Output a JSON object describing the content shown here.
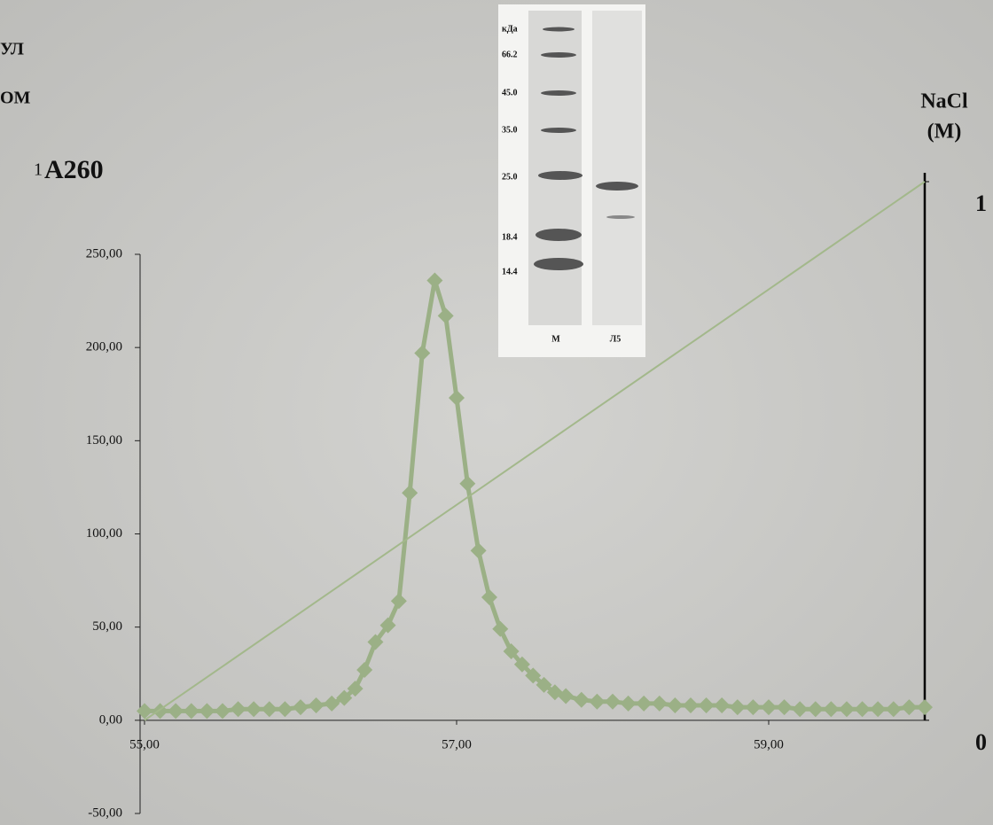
{
  "chart_data": {
    "type": "line",
    "ylabel": "A260",
    "y2label": [
      "NaCl",
      "(M)"
    ],
    "annotations": [
      "УЛ",
      "ОМ",
      "1"
    ],
    "xlim": [
      55,
      60
    ],
    "xticks": [
      {
        "value": 55,
        "label": "55,00"
      },
      {
        "value": 57,
        "label": "57,00"
      },
      {
        "value": 59,
        "label": "59,00"
      }
    ],
    "ylim": [
      -50,
      250
    ],
    "yticks": [
      {
        "value": -50,
        "label": "-50,00"
      },
      {
        "value": 0,
        "label": "0,00"
      },
      {
        "value": 50,
        "label": "50,00"
      },
      {
        "value": 100,
        "label": "100,00"
      },
      {
        "value": 150,
        "label": "150,00"
      },
      {
        "value": 200,
        "label": "200,00"
      },
      {
        "value": 250,
        "label": "250,00"
      }
    ],
    "y2lim": [
      0,
      1
    ],
    "y2ticks": [
      0,
      1
    ],
    "series": [
      {
        "color": "#9bb086",
        "marker": "diamond",
        "x": [
          55.0,
          55.1,
          55.2,
          55.3,
          55.4,
          55.5,
          55.6,
          55.7,
          55.8,
          55.9,
          56.0,
          56.1,
          56.2,
          56.28,
          56.35,
          56.41,
          56.48,
          56.56,
          56.63,
          56.7,
          56.78,
          56.86,
          56.93,
          57.0,
          57.07,
          57.14,
          57.21,
          57.28,
          57.35,
          57.42,
          57.49,
          57.56,
          57.63,
          57.7,
          57.8,
          57.9,
          58.0,
          58.1,
          58.2,
          58.3,
          58.4,
          58.5,
          58.6,
          58.7,
          58.8,
          58.9,
          59.0,
          59.1,
          59.2,
          59.3,
          59.4,
          59.5,
          59.6,
          59.7,
          59.8,
          59.9,
          60.0
        ],
        "values": [
          5,
          5,
          5,
          5,
          5,
          5,
          6,
          6,
          6,
          6,
          7,
          8,
          9,
          12,
          17,
          27,
          42,
          51,
          64,
          122,
          197,
          236,
          217,
          173,
          127,
          91,
          66,
          49,
          37,
          30,
          24,
          19,
          15,
          13,
          11,
          10,
          10,
          9,
          9,
          9,
          8,
          8,
          8,
          8,
          7,
          7,
          7,
          7,
          6,
          6,
          6,
          6,
          6,
          6,
          6,
          7,
          7
        ]
      },
      {
        "color": "#a3b88b",
        "axis": "y2",
        "x": [
          55,
          60
        ],
        "values": [
          0,
          1
        ]
      }
    ],
    "gel": {
      "labels": [
        "кДа",
        "66.2",
        "45.0",
        "35.0",
        "25.0",
        "18.4",
        "14.4"
      ],
      "lanes": [
        "М",
        "Л5"
      ]
    }
  }
}
